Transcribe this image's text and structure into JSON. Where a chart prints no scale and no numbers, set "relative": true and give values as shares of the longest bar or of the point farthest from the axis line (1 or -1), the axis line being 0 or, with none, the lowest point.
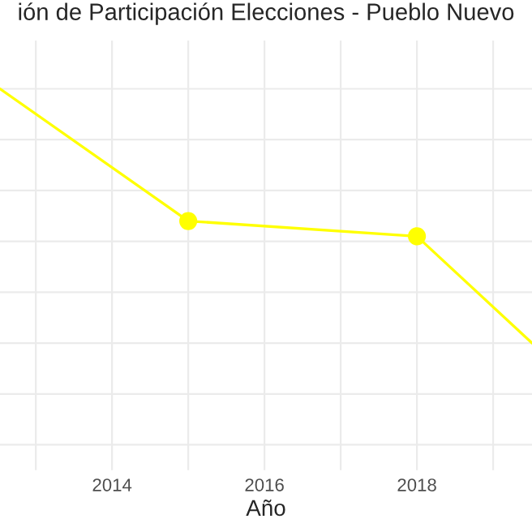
{
  "chart_data": {
    "type": "line",
    "title": "ión de Participación Elecciones - Pueblo Nuevo",
    "xlabel": "Año",
    "x": [
      2012.53,
      2015,
      2018,
      2019.51
    ],
    "series": [
      {
        "color": "#ffff00",
        "values": [
          1,
          0.48,
          0.42,
          0
        ]
      }
    ],
    "relative": true,
    "xlim": [
      2012.53,
      2019.51
    ],
    "xticks": [
      {
        "value": 2013,
        "label": null
      },
      2014,
      {
        "value": 2015,
        "label": null
      },
      2016,
      {
        "value": 2017,
        "label": null
      },
      2018,
      {
        "value": 2019,
        "label": null
      }
    ],
    "tick_labels": "x",
    "marker": "circle",
    "line_style": "solid",
    "grid": true
  }
}
